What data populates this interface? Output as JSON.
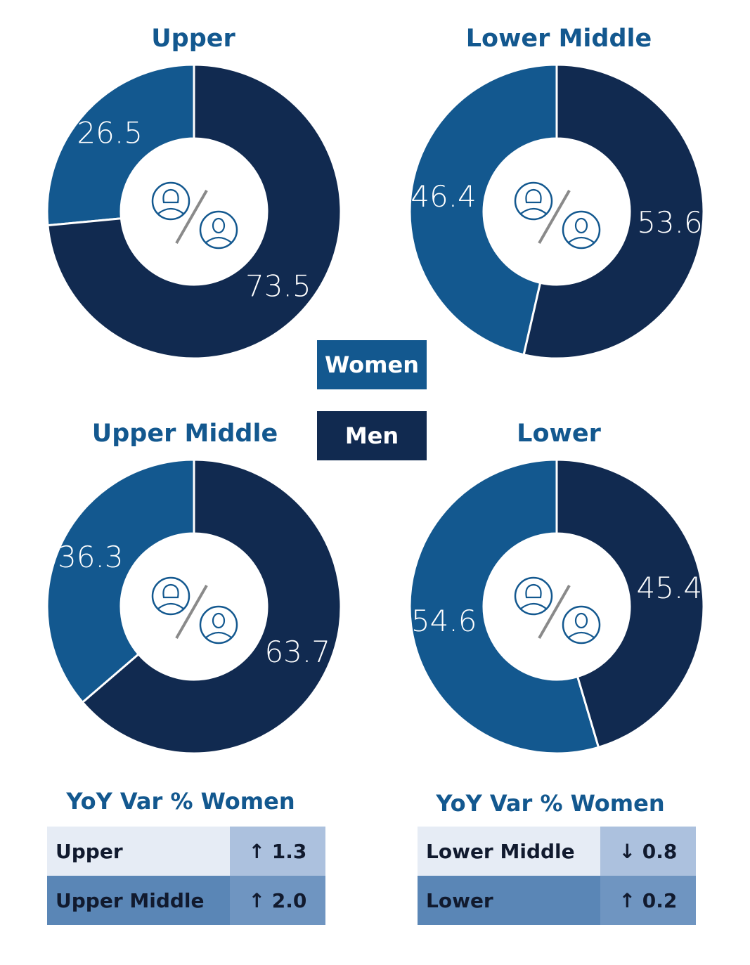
{
  "legend": {
    "women": "Women",
    "men": "Men"
  },
  "colors": {
    "women": "#13588f",
    "men": "#112a50",
    "accent_text": "#13588f"
  },
  "chart_data": [
    {
      "type": "pie",
      "title": "Upper",
      "categories": [
        "Women",
        "Men"
      ],
      "values": [
        26.5,
        73.5
      ],
      "labels": [
        "26.5",
        "73.5"
      ]
    },
    {
      "type": "pie",
      "title": "Lower Middle",
      "categories": [
        "Women",
        "Men"
      ],
      "values": [
        46.4,
        53.6
      ],
      "labels": [
        "46.4",
        "53.6"
      ]
    },
    {
      "type": "pie",
      "title": "Upper Middle",
      "categories": [
        "Women",
        "Men"
      ],
      "values": [
        36.3,
        63.7
      ],
      "labels": [
        "36.3",
        "63.7"
      ]
    },
    {
      "type": "pie",
      "title": "Lower",
      "categories": [
        "Women",
        "Men"
      ],
      "values": [
        54.6,
        45.4
      ],
      "labels": [
        "54.6",
        "45.4"
      ]
    },
    {
      "type": "table",
      "title": "YoY Var % Women",
      "rows": [
        {
          "category": "Upper",
          "value": "↑ 1.3"
        },
        {
          "category": "Upper Middle",
          "value": "↑ 2.0"
        }
      ]
    },
    {
      "type": "table",
      "title": "YoY Var % Women",
      "rows": [
        {
          "category": "Lower Middle",
          "value": "↓ 0.8"
        },
        {
          "category": "Lower",
          "value": "↑ 0.2"
        }
      ]
    }
  ],
  "icons": {
    "center": "woman-man-icon"
  }
}
